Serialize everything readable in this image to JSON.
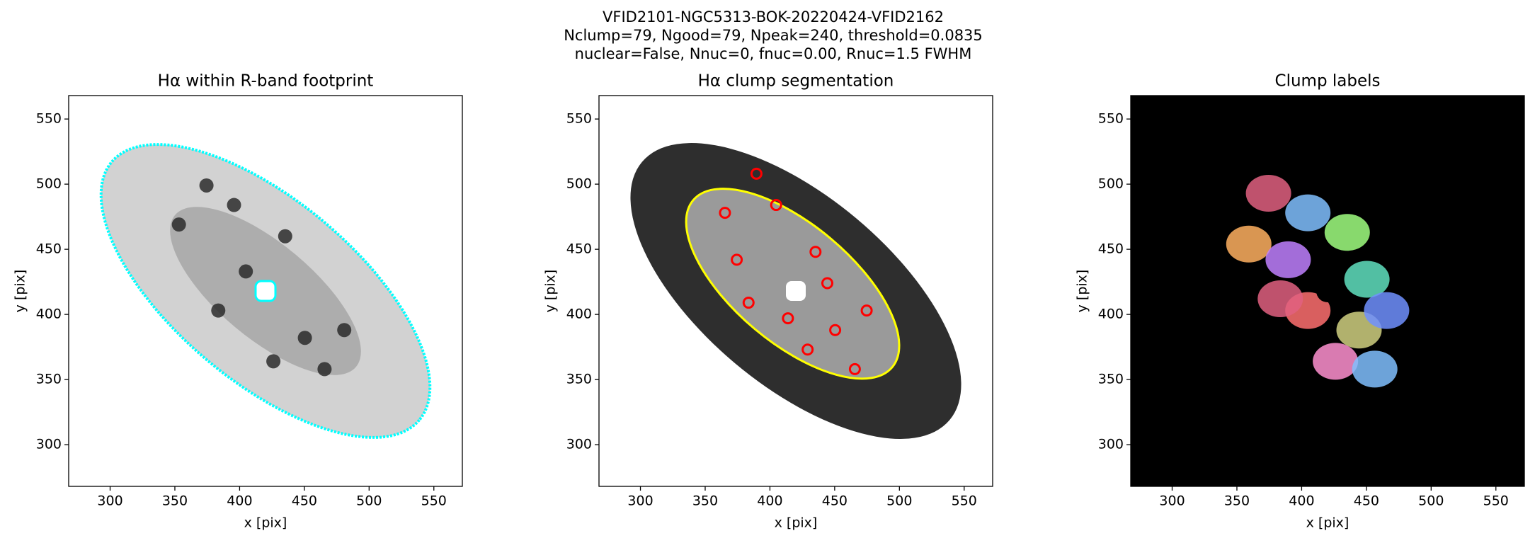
{
  "suptitle": [
    "VFID2101-NGC5313-BOK-20220424-VFID2162",
    "Nclump=79, Ngood=79, Npeak=240, threshold=0.0835",
    "nuclear=False, Nnuc=0, fnuc=0.00, Rnuc=1.5 FWHM"
  ],
  "chart_data": [
    {
      "type": "image",
      "title": "Hα within R-band footprint",
      "xlabel": "x [pix]",
      "ylabel": "y [pix]",
      "xlim": [
        268,
        572
      ],
      "ylim": [
        268,
        568
      ],
      "xticks": [
        300,
        350,
        400,
        450,
        500,
        550
      ],
      "yticks": [
        300,
        350,
        400,
        450,
        500,
        550
      ]
    },
    {
      "type": "image",
      "title": "Hα clump segmentation",
      "xlabel": "x [pix]",
      "ylabel": "y [pix]",
      "xlim": [
        268,
        572
      ],
      "ylim": [
        268,
        568
      ],
      "xticks": [
        300,
        350,
        400,
        450,
        500,
        550
      ],
      "yticks": [
        300,
        350,
        400,
        450,
        500,
        550
      ]
    },
    {
      "type": "image",
      "title": "Clump labels",
      "xlabel": "x [pix]",
      "ylabel": "y [pix]",
      "xlim": [
        268,
        572
      ],
      "ylim": [
        268,
        568
      ],
      "xticks": [
        300,
        350,
        400,
        450,
        500,
        550
      ],
      "yticks": [
        300,
        350,
        400,
        450,
        500,
        550
      ]
    }
  ]
}
